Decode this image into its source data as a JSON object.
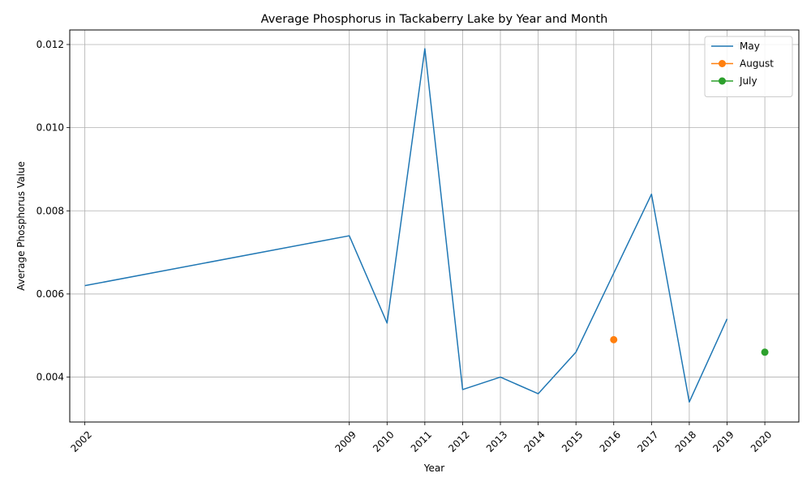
{
  "chart_data": {
    "type": "line",
    "title": "Average Phosphorus in Tackaberry Lake by Year and Month",
    "xlabel": "Year",
    "ylabel": "Average Phosphorus Value",
    "xlim": [
      2001.6,
      2020.9
    ],
    "ylim": [
      0.00292,
      0.01235
    ],
    "x_ticks": [
      "2002",
      "2009",
      "2010",
      "2011",
      "2012",
      "2013",
      "2014",
      "2015",
      "2016",
      "2017",
      "2018",
      "2019",
      "2020"
    ],
    "y_ticks": [
      "0.004",
      "0.006",
      "0.008",
      "0.010",
      "0.012"
    ],
    "grid": true,
    "legend_position": "top-right",
    "series": [
      {
        "name": "May",
        "color": "#1f77b4",
        "marker": false,
        "x": [
          2002,
          2009,
          2010,
          2011,
          2012,
          2013,
          2014,
          2015,
          2017,
          2018,
          2019
        ],
        "y": [
          0.0062,
          0.0074,
          0.0053,
          0.0119,
          0.0037,
          0.004,
          0.0036,
          0.0046,
          0.0084,
          0.0034,
          0.0054
        ]
      },
      {
        "name": "August",
        "color": "#ff7f0e",
        "marker": true,
        "x": [
          2016
        ],
        "y": [
          0.0049
        ]
      },
      {
        "name": "July",
        "color": "#2ca02c",
        "marker": true,
        "x": [
          2020
        ],
        "y": [
          0.0046
        ]
      }
    ]
  }
}
